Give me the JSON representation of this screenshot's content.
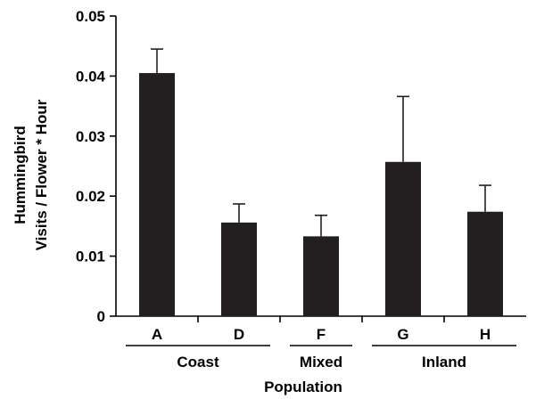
{
  "chart_data": {
    "type": "bar",
    "categories": [
      "A",
      "D",
      "F",
      "G",
      "H"
    ],
    "values": [
      0.0405,
      0.0156,
      0.0133,
      0.0257,
      0.0174
    ],
    "error_upper": [
      0.0445,
      0.0187,
      0.0168,
      0.0366,
      0.0218
    ],
    "ylim": [
      0,
      0.05
    ],
    "yticks": [
      "0",
      "0.01",
      "0.02",
      "0.03",
      "0.04",
      "0.05"
    ],
    "ylabel": [
      "Hummingbird",
      "Visits / Flower * Hour"
    ],
    "xlabel": "Population",
    "groups": [
      {
        "label": "Coast",
        "categories": [
          "A",
          "D"
        ]
      },
      {
        "label": "Mixed",
        "categories": [
          "F"
        ]
      },
      {
        "label": "Inland",
        "categories": [
          "G",
          "H"
        ]
      }
    ],
    "bar_color": "#231f20",
    "grid": false
  }
}
